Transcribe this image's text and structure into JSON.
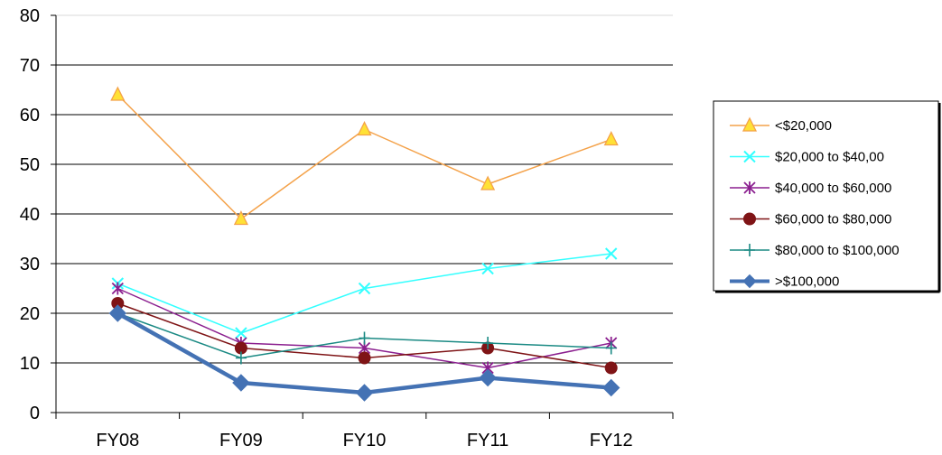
{
  "chart_data": {
    "type": "line",
    "categories": [
      "FY08",
      "FY09",
      "FY10",
      "FY11",
      "FY12"
    ],
    "ylim": [
      0,
      80
    ],
    "yticks": [
      0,
      10,
      20,
      30,
      40,
      50,
      60,
      70,
      80
    ],
    "grid": "horizontal",
    "legend_position": "right",
    "series": [
      {
        "name": "<$20,000",
        "values": [
          64,
          39,
          57,
          46,
          55
        ],
        "color": "#F4A24A",
        "marker": "triangle"
      },
      {
        "name": "$20,000 to $40,00",
        "values": [
          26,
          16,
          25,
          29,
          32
        ],
        "color": "#33FFFF",
        "marker": "x"
      },
      {
        "name": "$40,000 to $60,000",
        "values": [
          25,
          14,
          13,
          9,
          14
        ],
        "color": "#8B1F8F",
        "marker": "star"
      },
      {
        "name": "$60,000 to $80,000",
        "values": [
          22,
          13,
          11,
          13,
          9
        ],
        "color": "#7F1416",
        "marker": "circle"
      },
      {
        "name": "$80,000 to $100,000",
        "values": [
          20,
          11,
          15,
          14,
          13
        ],
        "color": "#1B8A84",
        "marker": "plus"
      },
      {
        "name": ">$100,000",
        "values": [
          20,
          6,
          4,
          7,
          5
        ],
        "color": "#4472B4",
        "marker": "diamond"
      }
    ]
  }
}
